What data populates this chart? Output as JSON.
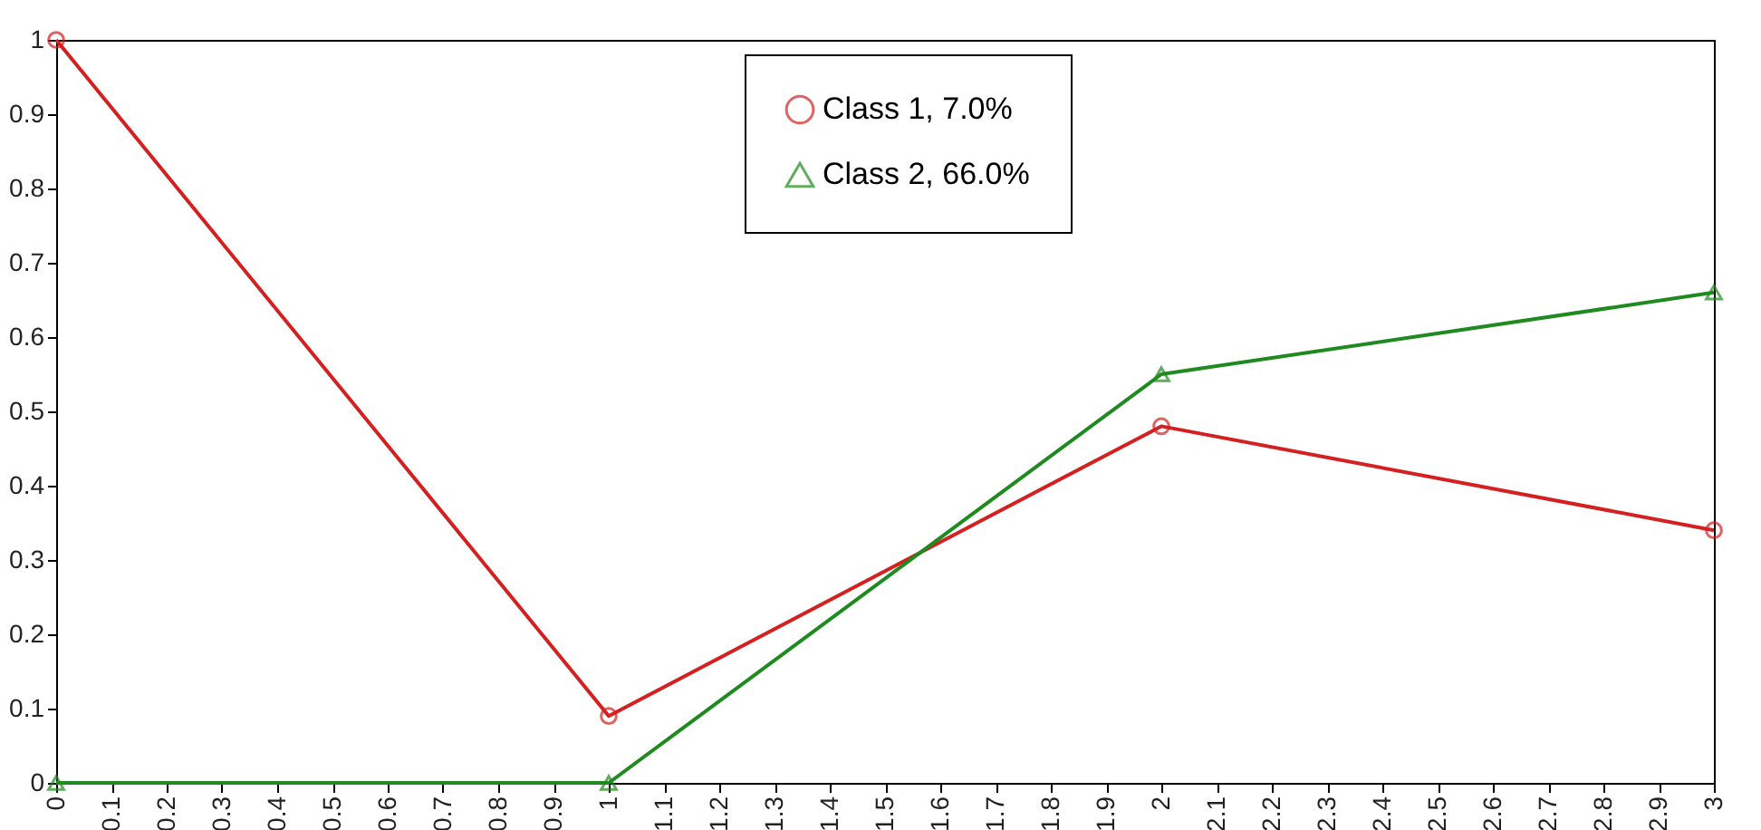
{
  "chart_data": {
    "type": "line",
    "x": [
      0,
      1,
      2,
      3
    ],
    "series": [
      {
        "name": "Class 1, 7.0%",
        "color": "#d42020",
        "marker": "circle",
        "values": [
          1,
          0.09,
          0.48,
          0.34
        ]
      },
      {
        "name": "Class 2, 66.0%",
        "color": "#1f8a1f",
        "marker": "triangle",
        "values": [
          0,
          0,
          0.55,
          0.66
        ]
      }
    ],
    "xlim": [
      0,
      3
    ],
    "xticks": [
      0,
      0.1,
      0.2,
      0.3,
      0.4,
      0.5,
      0.6,
      0.7,
      0.8,
      0.9,
      1,
      1.1,
      1.2,
      1.3,
      1.4,
      1.5,
      1.6,
      1.7,
      1.8,
      1.9,
      2,
      2.1,
      2.2,
      2.3,
      2.4,
      2.5,
      2.6,
      2.7,
      2.8,
      2.9,
      3
    ],
    "ylim": [
      0,
      1
    ],
    "yticks": [
      0,
      0.1,
      0.2,
      0.3,
      0.4,
      0.5,
      0.6,
      0.7,
      0.8,
      0.9,
      1
    ],
    "grid": false,
    "legend": "top",
    "line_style": "solid"
  }
}
